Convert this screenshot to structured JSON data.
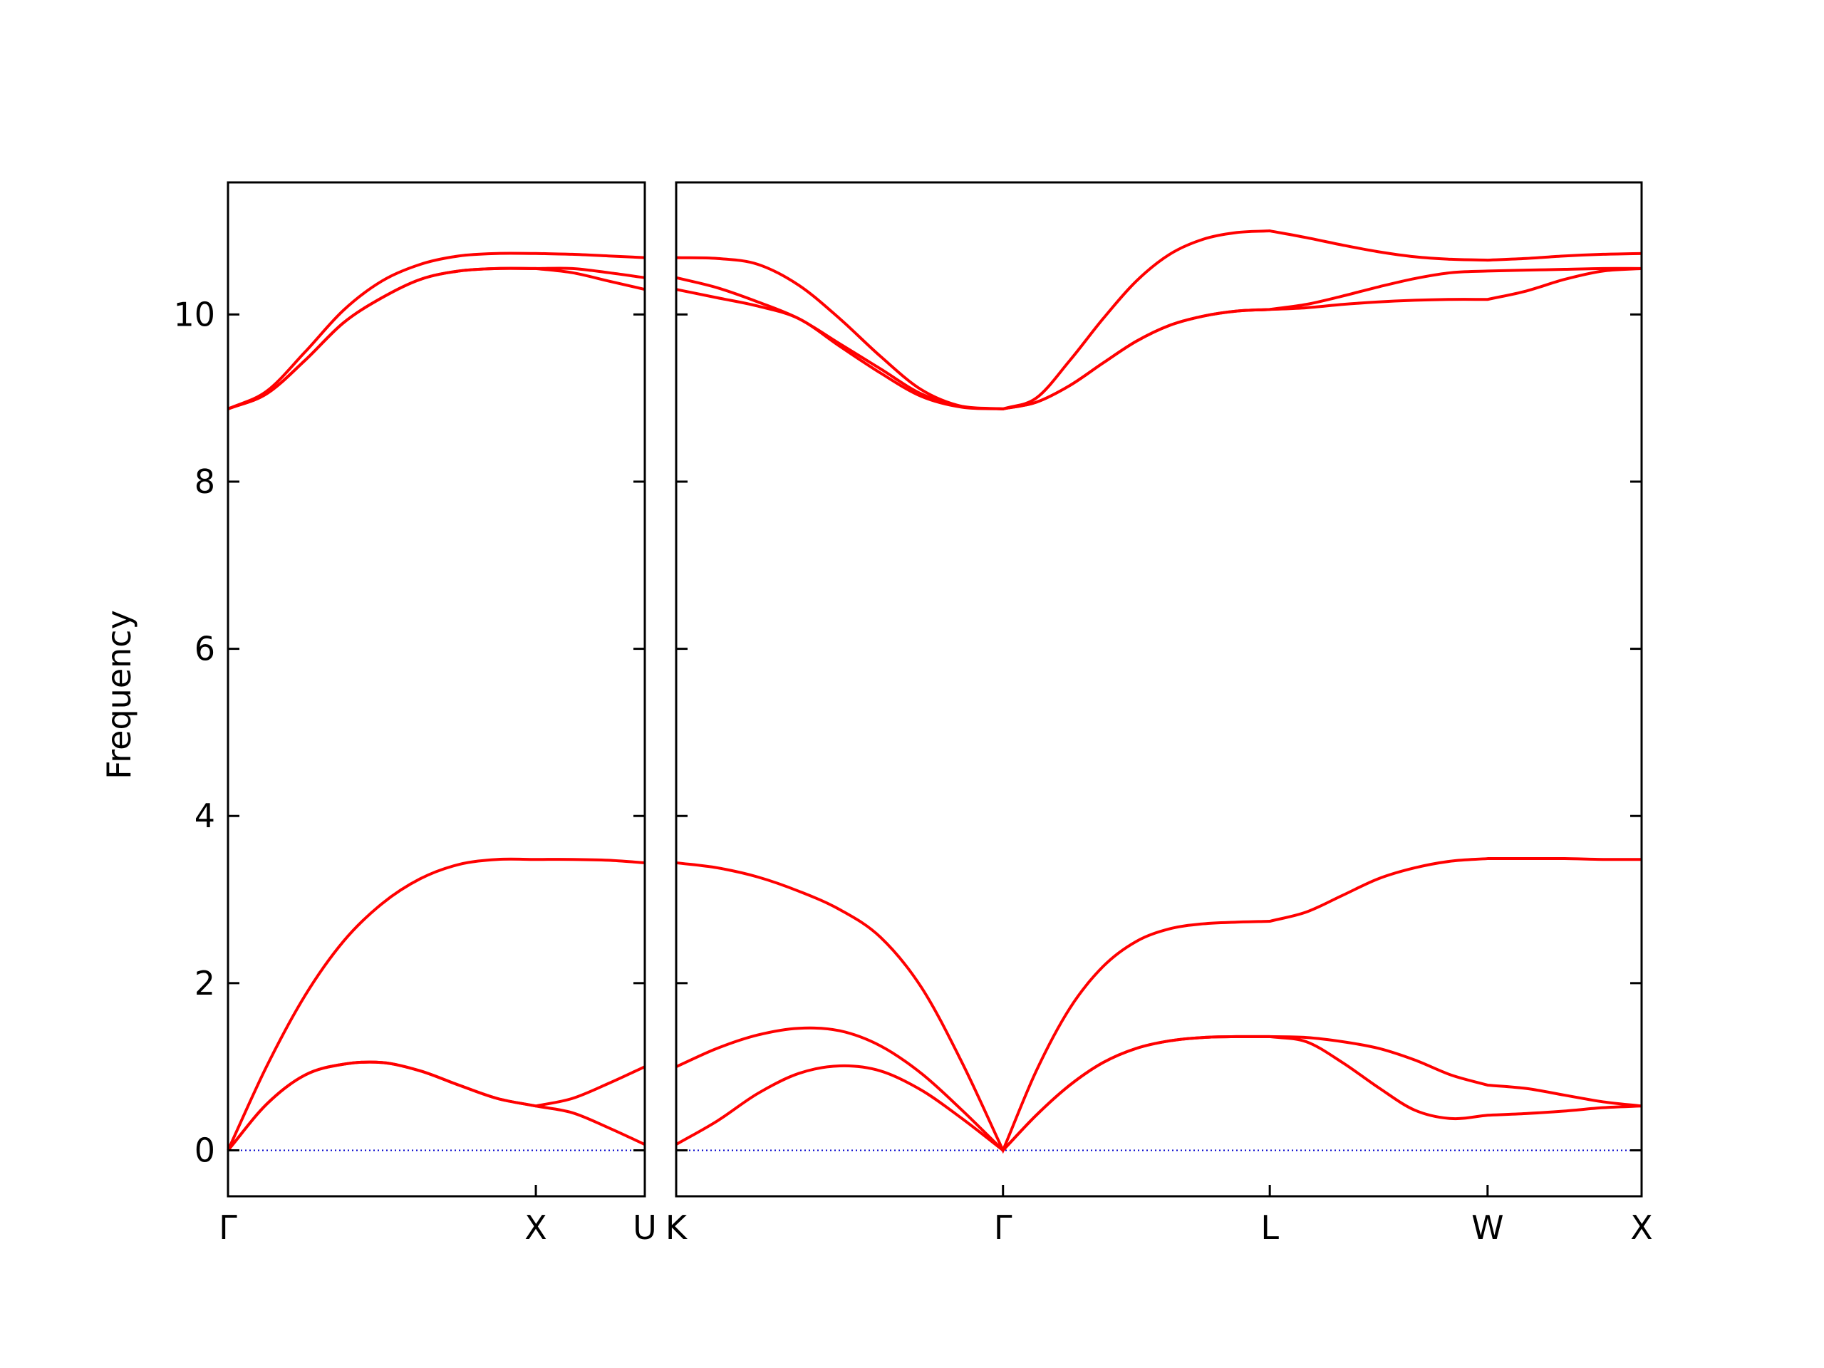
{
  "chart_data": [
    {
      "type": "line",
      "ylabel": "Frequency",
      "xlim": [
        0,
        1.354
      ],
      "ylim": [
        -0.55,
        11.58
      ],
      "xticks": [
        {
          "value": 0,
          "label": "Γ"
        },
        {
          "value": 1.0,
          "label": "X"
        },
        {
          "value": 1.354,
          "label": "U"
        }
      ],
      "yticks": [
        0,
        2,
        4,
        6,
        8,
        10
      ],
      "reference_line": {
        "y": 0,
        "color": "#0000cc"
      },
      "x": [
        0,
        0.125,
        0.25,
        0.375,
        0.5,
        0.625,
        0.75,
        0.875,
        1.0,
        1.118,
        1.236,
        1.354
      ],
      "series": [
        {
          "color": "#ff0000",
          "values": [
            0,
            0.55,
            0.9,
            1.03,
            1.05,
            0.95,
            0.78,
            0.62,
            0.53,
            0.45,
            0.27,
            0.07
          ]
        },
        {
          "color": "#ff0000",
          "values": [
            0,
            0.55,
            0.9,
            1.03,
            1.05,
            0.95,
            0.78,
            0.62,
            0.53,
            0.62,
            0.8,
            1.0
          ]
        },
        {
          "color": "#ff0000",
          "values": [
            0,
            1.0,
            1.85,
            2.5,
            2.95,
            3.25,
            3.42,
            3.48,
            3.48,
            3.48,
            3.47,
            3.44
          ]
        },
        {
          "color": "#ff0000",
          "values": [
            8.87,
            9.05,
            9.45,
            9.9,
            10.2,
            10.42,
            10.52,
            10.55,
            10.55,
            10.5,
            10.4,
            10.3
          ]
        },
        {
          "color": "#ff0000",
          "values": [
            8.87,
            9.05,
            9.45,
            9.9,
            10.2,
            10.42,
            10.52,
            10.55,
            10.55,
            10.55,
            10.5,
            10.44
          ]
        },
        {
          "color": "#ff0000",
          "values": [
            8.87,
            9.08,
            9.55,
            10.05,
            10.4,
            10.6,
            10.7,
            10.73,
            10.73,
            10.72,
            10.7,
            10.68
          ]
        }
      ]
    },
    {
      "type": "line",
      "xlim": [
        1.354,
        4.488
      ],
      "ylim": [
        -0.55,
        11.58
      ],
      "xticks": [
        {
          "value": 1.354,
          "label": "K"
        },
        {
          "value": 2.415,
          "label": "Γ"
        },
        {
          "value": 3.281,
          "label": "L"
        },
        {
          "value": 3.988,
          "label": "W"
        },
        {
          "value": 4.488,
          "label": "X"
        }
      ],
      "reference_line": {
        "y": 0,
        "color": "#0000cc"
      },
      "x": [
        1.354,
        1.487,
        1.619,
        1.752,
        1.885,
        2.017,
        2.15,
        2.282,
        2.415,
        2.523,
        2.632,
        2.74,
        2.848,
        2.956,
        3.065,
        3.173,
        3.281,
        3.399,
        3.517,
        3.634,
        3.752,
        3.87,
        3.988,
        4.113,
        4.238,
        4.363,
        4.488
      ],
      "series": [
        {
          "color": "#ff0000",
          "values": [
            0.07,
            0.35,
            0.68,
            0.92,
            1.01,
            0.95,
            0.72,
            0.38,
            0,
            0.42,
            0.78,
            1.05,
            1.22,
            1.31,
            1.35,
            1.36,
            1.36,
            1.3,
            1.05,
            0.75,
            0.48,
            0.38,
            0.42,
            0.44,
            0.47,
            0.51,
            0.53
          ]
        },
        {
          "color": "#ff0000",
          "values": [
            1.0,
            1.22,
            1.38,
            1.46,
            1.43,
            1.25,
            0.92,
            0.48,
            0,
            0.42,
            0.78,
            1.05,
            1.22,
            1.31,
            1.35,
            1.36,
            1.36,
            1.35,
            1.3,
            1.22,
            1.08,
            0.9,
            0.78,
            0.74,
            0.66,
            0.58,
            0.53
          ]
        },
        {
          "color": "#ff0000",
          "values": [
            3.44,
            3.38,
            3.27,
            3.1,
            2.88,
            2.55,
            1.95,
            1.05,
            0,
            0.95,
            1.7,
            2.2,
            2.5,
            2.65,
            2.71,
            2.73,
            2.74,
            2.85,
            3.05,
            3.25,
            3.38,
            3.46,
            3.49,
            3.49,
            3.49,
            3.48,
            3.48
          ]
        },
        {
          "color": "#ff0000",
          "values": [
            10.3,
            10.2,
            10.1,
            9.95,
            9.62,
            9.3,
            9.02,
            8.89,
            8.87,
            8.95,
            9.15,
            9.42,
            9.68,
            9.87,
            9.98,
            10.04,
            10.06,
            10.08,
            10.12,
            10.15,
            10.17,
            10.18,
            10.18,
            10.28,
            10.42,
            10.52,
            10.55
          ]
        },
        {
          "color": "#ff0000",
          "values": [
            10.44,
            10.32,
            10.15,
            9.95,
            9.65,
            9.35,
            9.05,
            8.9,
            8.87,
            8.95,
            9.15,
            9.42,
            9.68,
            9.87,
            9.98,
            10.04,
            10.06,
            10.12,
            10.22,
            10.33,
            10.43,
            10.5,
            10.52,
            10.53,
            10.54,
            10.55,
            10.55
          ]
        },
        {
          "color": "#ff0000",
          "values": [
            10.68,
            10.67,
            10.6,
            10.35,
            9.95,
            9.5,
            9.1,
            8.9,
            8.87,
            9.0,
            9.45,
            9.95,
            10.4,
            10.72,
            10.9,
            10.98,
            11.0,
            10.92,
            10.83,
            10.75,
            10.69,
            10.66,
            10.65,
            10.67,
            10.7,
            10.72,
            10.73
          ]
        }
      ]
    }
  ]
}
